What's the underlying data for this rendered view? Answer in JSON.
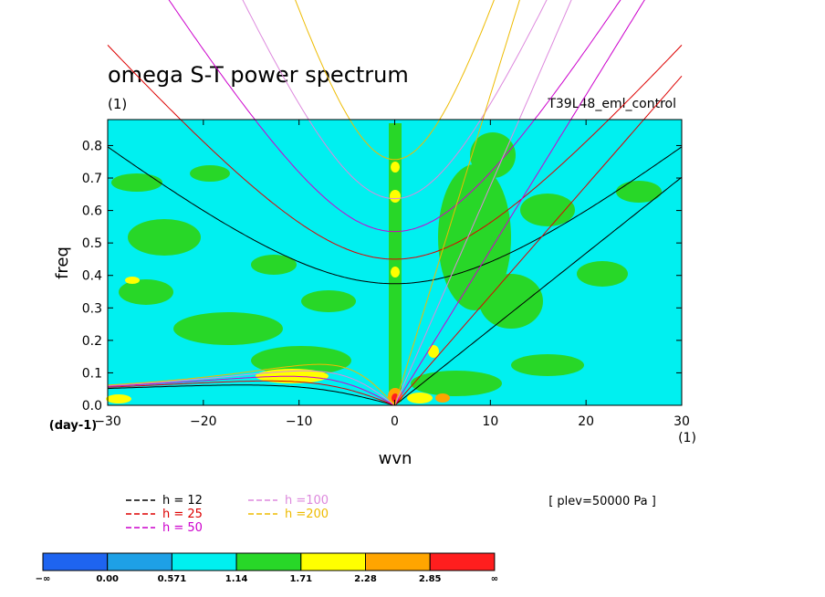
{
  "chart_data": {
    "type": "heatmap",
    "title": "omega S-T power spectrum",
    "subtitle_left": "(1)",
    "subtitle_right": "T39L48_eml_control",
    "xlabel": "wvn",
    "ylabel": "freq",
    "x_units_label": "(1)",
    "y_units_label": "(day-1)",
    "xlim": [
      -30,
      30
    ],
    "ylim": [
      0.0,
      0.88
    ],
    "x_ticks": [
      -30,
      -20,
      -10,
      0,
      10,
      20,
      30
    ],
    "x_tick_labels": [
      "−30",
      "−20",
      "−10",
      "0",
      "10",
      "20",
      "30"
    ],
    "y_ticks": [
      0.0,
      0.1,
      0.2,
      0.3,
      0.4,
      0.5,
      0.6,
      0.7,
      0.8
    ],
    "y_tick_labels": [
      "0.0",
      "0.1",
      "0.2",
      "0.3",
      "0.4",
      "0.5",
      "0.6",
      "0.7",
      "0.8"
    ],
    "annotation": "[ plev=50000 Pa ]",
    "dispersion_curves": [
      {
        "label": "h = 12",
        "h": 12,
        "color": "#000000"
      },
      {
        "label": "h = 25",
        "h": 25,
        "color": "#dd0000"
      },
      {
        "label": "h = 50",
        "h": 50,
        "color": "#cc00cc"
      },
      {
        "label": "h =100",
        "h": 100,
        "color": "#dd88dd"
      },
      {
        "label": "h =200",
        "h": 200,
        "color": "#eebb00"
      }
    ],
    "colorbar": {
      "levels": [
        "−∞",
        "0.00",
        "0.571",
        "1.14",
        "1.71",
        "2.28",
        "2.85",
        "∞"
      ],
      "colors": [
        "#1e64f0",
        "#1ea0e6",
        "#00f0f0",
        "#28d728",
        "#ffff00",
        "#ffa500",
        "#ff1e1e"
      ]
    }
  }
}
